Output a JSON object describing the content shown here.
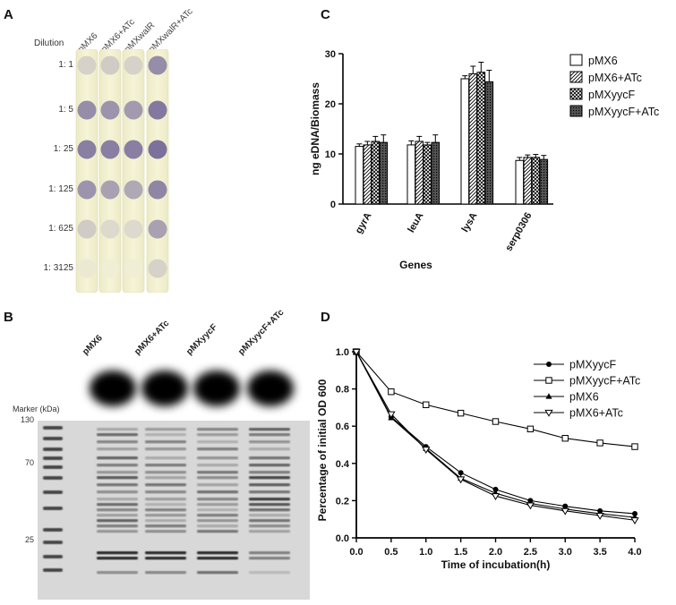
{
  "panels": {
    "a": {
      "letter": "A",
      "dilution_label": "Dilution",
      "columns": [
        "pMX6",
        "pMX6+ATc",
        "pMXwalR",
        "pMXwalR+ATc"
      ],
      "rows": [
        "1: 1",
        "1: 5",
        "1: 25",
        "1: 125",
        "1: 625",
        "1: 3125"
      ],
      "spot_intensity": [
        [
          0.25,
          0.3,
          0.25,
          0.75
        ],
        [
          0.75,
          0.7,
          0.65,
          0.9
        ],
        [
          0.85,
          0.85,
          0.85,
          0.95
        ],
        [
          0.7,
          0.6,
          0.55,
          0.8
        ],
        [
          0.3,
          0.2,
          0.2,
          0.6
        ],
        [
          0.08,
          0.05,
          0.05,
          0.25
        ]
      ]
    },
    "b": {
      "letter": "B",
      "lanes": [
        "pMX6",
        "pMX6+ATc",
        "pMXyycF",
        "pMXyycF+ATc"
      ],
      "marker_title": "Marker (kDa)",
      "markers": [
        "130",
        "70",
        "25"
      ]
    },
    "c": {
      "letter": "C"
    },
    "d": {
      "letter": "D"
    }
  },
  "chart_data": [
    {
      "type": "bar",
      "categories": [
        "gyrA",
        "leuA",
        "lysA",
        "serp0306"
      ],
      "series": [
        {
          "name": "pMX6",
          "values": [
            11.5,
            11.8,
            25.0,
            8.7
          ],
          "errors": [
            0.5,
            0.8,
            0.6,
            0.6
          ],
          "pattern": "open"
        },
        {
          "name": "pMX6+ATc",
          "values": [
            11.8,
            12.5,
            26.0,
            9.3
          ],
          "errors": [
            0.7,
            1.0,
            1.5,
            0.5
          ],
          "pattern": "hatch"
        },
        {
          "name": "pMXyycF",
          "values": [
            12.5,
            11.8,
            26.3,
            9.3
          ],
          "errors": [
            1.0,
            0.5,
            2.0,
            0.6
          ],
          "pattern": "cross"
        },
        {
          "name": "pMXyycF+ATc",
          "values": [
            12.3,
            12.3,
            24.4,
            8.9
          ],
          "errors": [
            1.5,
            1.5,
            2.3,
            0.8
          ],
          "pattern": "dense"
        }
      ],
      "xlabel": "Genes",
      "ylabel": "ng eDNA/Biomass",
      "ylim": [
        0,
        30
      ],
      "yticks": [
        "0",
        "10",
        "20",
        "30"
      ],
      "legend": "top-right"
    },
    {
      "type": "line",
      "x": [
        0,
        0.5,
        1.0,
        1.5,
        2.0,
        2.5,
        3.0,
        3.5,
        4.0
      ],
      "xticks": [
        "0.0",
        "0.5",
        "1.0",
        "1.5",
        "2.0",
        "2.5",
        "3.0",
        "3.5",
        "4.0"
      ],
      "yticks": [
        "0.0",
        "0.2",
        "0.4",
        "0.6",
        "0.8",
        "1.0"
      ],
      "series": [
        {
          "name": "pMXyycF",
          "marker": "filled-circle",
          "values": [
            1.0,
            0.65,
            0.49,
            0.35,
            0.26,
            0.2,
            0.17,
            0.145,
            0.13
          ]
        },
        {
          "name": "pMXyycF+ATc",
          "marker": "open-square",
          "values": [
            1.0,
            0.785,
            0.715,
            0.67,
            0.625,
            0.585,
            0.535,
            0.51,
            0.49
          ]
        },
        {
          "name": "pMX6",
          "marker": "filled-triangle",
          "values": [
            1.0,
            0.645,
            0.48,
            0.32,
            0.24,
            0.185,
            0.155,
            0.13,
            0.11
          ]
        },
        {
          "name": "pMX6+ATc",
          "marker": "open-triangle-down",
          "values": [
            1.0,
            0.665,
            0.475,
            0.315,
            0.225,
            0.175,
            0.145,
            0.12,
            0.095
          ]
        }
      ],
      "xlabel": "Time of incubation(h)",
      "ylabel": "Percentage of initial OD 600",
      "xlim": [
        0,
        4
      ],
      "ylim": [
        0,
        1
      ],
      "legend": "top-right"
    }
  ]
}
